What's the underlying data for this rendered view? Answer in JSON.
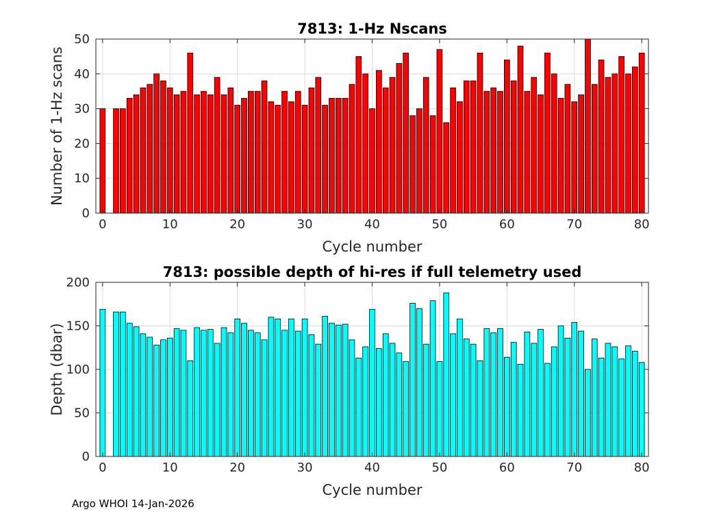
{
  "footer_text": "Argo WHOI 14-Jan-2026",
  "chart_data": [
    {
      "type": "bar",
      "title": "7813: 1-Hz Nscans",
      "xlabel": "Cycle number",
      "ylabel": "Number of 1-Hz scans",
      "xlim": [
        -1,
        81
      ],
      "ylim": [
        0,
        50
      ],
      "xticks": [
        0,
        10,
        20,
        30,
        40,
        50,
        60,
        70,
        80
      ],
      "yticks": [
        0,
        10,
        20,
        30,
        40,
        50
      ],
      "grid": true,
      "bar_color": "#ff0000",
      "x": [
        0,
        2,
        3,
        4,
        5,
        6,
        7,
        8,
        9,
        10,
        11,
        12,
        13,
        14,
        15,
        16,
        17,
        18,
        19,
        20,
        21,
        22,
        23,
        24,
        25,
        26,
        27,
        28,
        29,
        30,
        31,
        32,
        33,
        34,
        35,
        36,
        37,
        38,
        39,
        40,
        41,
        42,
        43,
        44,
        45,
        46,
        47,
        48,
        49,
        50,
        51,
        52,
        53,
        54,
        55,
        56,
        57,
        58,
        59,
        60,
        61,
        62,
        63,
        64,
        65,
        66,
        67,
        68,
        69,
        70,
        71,
        72,
        73,
        74,
        75,
        76,
        77,
        78,
        79,
        80
      ],
      "values": [
        30,
        30,
        30,
        33,
        34,
        36,
        37,
        40,
        38,
        36,
        34,
        35,
        46,
        34,
        35,
        34,
        39,
        34,
        36,
        31,
        33,
        35,
        35,
        38,
        32,
        31,
        35,
        32,
        35,
        31,
        36,
        39,
        31,
        33,
        33,
        33,
        37,
        45,
        40,
        30,
        41,
        36,
        39,
        43,
        46,
        28,
        30,
        39,
        28,
        47,
        26,
        36,
        32,
        38,
        38,
        46,
        35,
        36,
        35,
        44,
        38,
        48,
        35,
        39,
        34,
        46,
        40,
        33,
        37,
        32,
        34,
        50,
        37,
        44,
        39,
        40,
        45,
        40,
        42,
        46
      ]
    },
    {
      "type": "bar",
      "title": "7813: possible depth of hi-res if full telemetry used",
      "xlabel": "Cycle number",
      "ylabel": "Depth (dbar)",
      "xlim": [
        -1,
        81
      ],
      "ylim": [
        0,
        200
      ],
      "xticks": [
        0,
        10,
        20,
        30,
        40,
        50,
        60,
        70,
        80
      ],
      "yticks": [
        0,
        50,
        100,
        150,
        200
      ],
      "grid": true,
      "bar_color": "#00ffff",
      "x": [
        0,
        2,
        3,
        4,
        5,
        6,
        7,
        8,
        9,
        10,
        11,
        12,
        13,
        14,
        15,
        16,
        17,
        18,
        19,
        20,
        21,
        22,
        23,
        24,
        25,
        26,
        27,
        28,
        29,
        30,
        31,
        32,
        33,
        34,
        35,
        36,
        37,
        38,
        39,
        40,
        41,
        42,
        43,
        44,
        45,
        46,
        47,
        48,
        49,
        50,
        51,
        52,
        53,
        54,
        55,
        56,
        57,
        58,
        59,
        60,
        61,
        62,
        63,
        64,
        65,
        66,
        67,
        68,
        69,
        70,
        71,
        72,
        73,
        74,
        75,
        76,
        77,
        78,
        79,
        80
      ],
      "values": [
        169,
        166,
        166,
        153,
        149,
        141,
        137,
        128,
        134,
        136,
        147,
        145,
        110,
        148,
        145,
        146,
        130,
        148,
        142,
        158,
        153,
        145,
        142,
        134,
        160,
        158,
        145,
        158,
        144,
        158,
        140,
        129,
        161,
        153,
        151,
        152,
        134,
        113,
        126,
        169,
        124,
        141,
        130,
        119,
        109,
        176,
        170,
        129,
        179,
        109,
        188,
        141,
        158,
        135,
        129,
        110,
        147,
        142,
        147,
        114,
        131,
        106,
        143,
        130,
        146,
        107,
        126,
        150,
        136,
        154,
        144,
        100,
        135,
        113,
        130,
        126,
        112,
        127,
        121,
        108
      ]
    }
  ]
}
